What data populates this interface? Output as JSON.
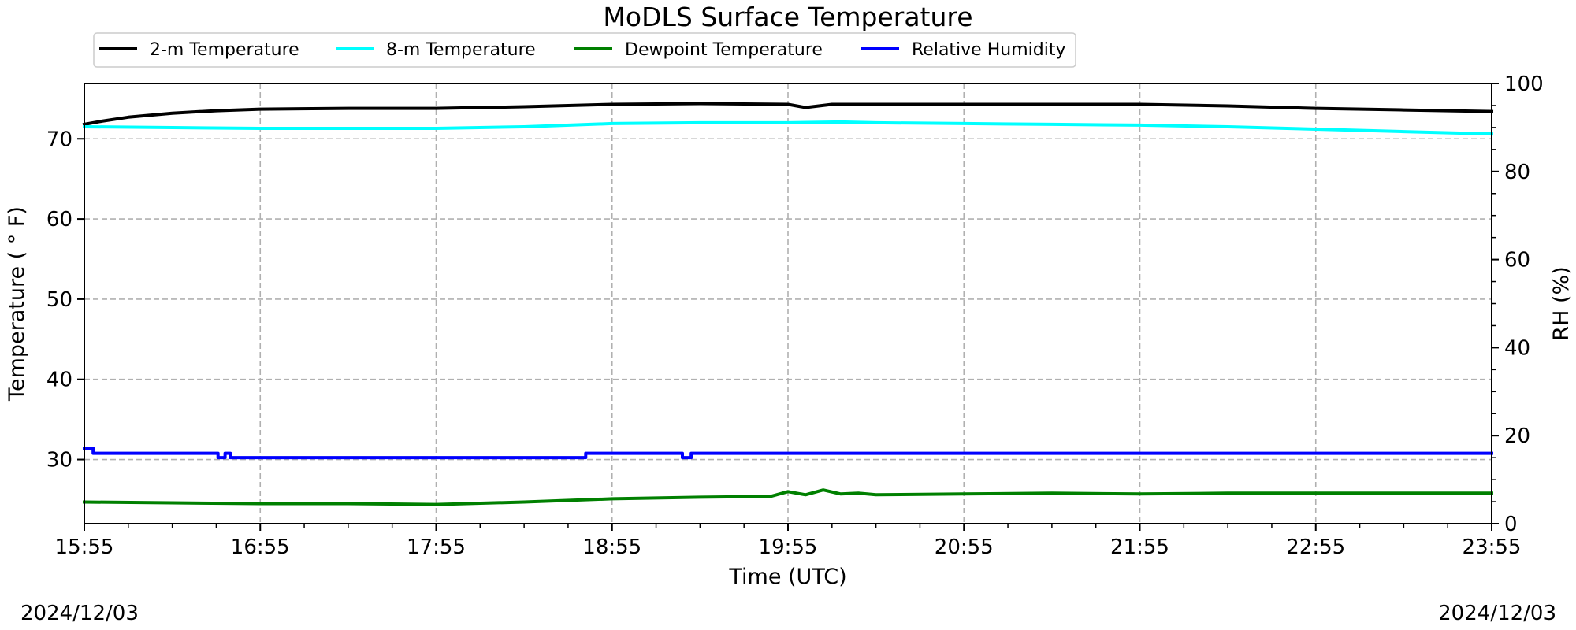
{
  "chart_data": {
    "type": "line",
    "title": "MoDLS Surface Temperature",
    "xlabel": "Time (UTC)",
    "ylabel_left": "Temperature ($^\\circ$F)",
    "ylabel_left_display": "Temperature ( ° F)",
    "ylabel_right": "RH (%)",
    "x_ticks": [
      "15:55",
      "16:55",
      "17:55",
      "18:55",
      "19:55",
      "20:55",
      "21:55",
      "22:55",
      "23:55"
    ],
    "xlim_hours": [
      0,
      8
    ],
    "y_left_ticks": [
      30,
      40,
      50,
      60,
      70
    ],
    "y_left_lim": [
      22,
      76.9
    ],
    "y_right_ticks": [
      0,
      20,
      40,
      60,
      80,
      100
    ],
    "y_right_lim": [
      0,
      100
    ],
    "grid": true,
    "legend_position": "top (above plot)",
    "date_left": "2024/12/03",
    "date_right": "2024/12/03",
    "series": [
      {
        "name": "2-m Temperature",
        "color": "#000000",
        "axis": "left",
        "x": [
          0,
          0.1,
          0.25,
          0.5,
          0.75,
          1.0,
          1.5,
          2.0,
          2.5,
          3.0,
          3.5,
          4.0,
          4.1,
          4.25,
          4.5,
          5.0,
          5.5,
          6.0,
          6.5,
          7.0,
          7.5,
          8.0
        ],
        "y": [
          71.8,
          72.2,
          72.7,
          73.2,
          73.5,
          73.7,
          73.8,
          73.8,
          74.0,
          74.3,
          74.4,
          74.3,
          73.9,
          74.3,
          74.3,
          74.3,
          74.3,
          74.3,
          74.1,
          73.8,
          73.6,
          73.4
        ]
      },
      {
        "name": "8-m Temperature",
        "color": "#00ffff",
        "axis": "left",
        "x": [
          0,
          0.5,
          1.0,
          1.5,
          2.0,
          2.5,
          3.0,
          3.5,
          4.0,
          4.3,
          4.5,
          5.0,
          5.5,
          6.0,
          6.5,
          7.0,
          7.5,
          8.0
        ],
        "y": [
          71.5,
          71.4,
          71.3,
          71.3,
          71.3,
          71.5,
          71.9,
          72.0,
          72.0,
          72.1,
          72.0,
          71.9,
          71.8,
          71.7,
          71.5,
          71.2,
          70.9,
          70.6
        ]
      },
      {
        "name": "Dewpoint Temperature",
        "color": "#008000",
        "axis": "left",
        "x": [
          0,
          0.5,
          1.0,
          1.5,
          2.0,
          2.5,
          3.0,
          3.5,
          3.9,
          4.0,
          4.1,
          4.2,
          4.3,
          4.4,
          4.5,
          5.0,
          5.5,
          6.0,
          6.5,
          7.0,
          7.5,
          8.0
        ],
        "y": [
          24.7,
          24.6,
          24.5,
          24.5,
          24.4,
          24.7,
          25.1,
          25.3,
          25.4,
          26.0,
          25.6,
          26.2,
          25.7,
          25.8,
          25.6,
          25.7,
          25.8,
          25.7,
          25.8,
          25.8,
          25.8,
          25.8
        ]
      },
      {
        "name": "Relative Humidity",
        "color": "#0000ff",
        "axis": "right",
        "step": true,
        "x": [
          0,
          0.05,
          0.05,
          0.76,
          0.76,
          0.8,
          0.8,
          0.83,
          0.83,
          0.86,
          0.86,
          2.85,
          2.85,
          3.4,
          3.4,
          3.45,
          3.45,
          8.0
        ],
        "y": [
          17.1,
          17.1,
          16.0,
          16.0,
          15.0,
          15.0,
          16.0,
          16.0,
          15.0,
          15.0,
          15.0,
          15.0,
          16.0,
          16.0,
          15.0,
          15.0,
          16.0,
          16.0
        ]
      }
    ]
  }
}
